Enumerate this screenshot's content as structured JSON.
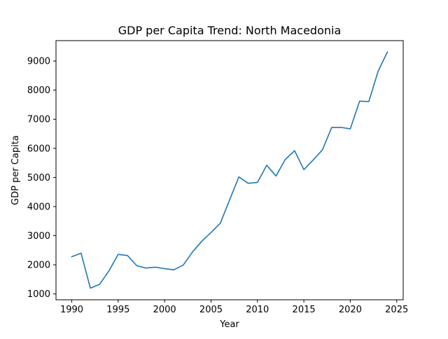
{
  "chart_data": {
    "type": "line",
    "title": "GDP per Capita Trend: North Macedonia",
    "xlabel": "Year",
    "ylabel": "GDP per Capita",
    "xlim": [
      1988.3,
      2025.7
    ],
    "ylim": [
      800,
      9700
    ],
    "xticks": [
      1990,
      1995,
      2000,
      2005,
      2010,
      2015,
      2020,
      2025
    ],
    "yticks": [
      1000,
      2000,
      3000,
      4000,
      5000,
      6000,
      7000,
      8000,
      9000
    ],
    "grid": false,
    "series": [
      {
        "name": "North Macedonia",
        "color": "#1f77b4",
        "x": [
          1990,
          1991,
          1992,
          1993,
          1994,
          1995,
          1996,
          1997,
          1998,
          1999,
          2000,
          2001,
          2002,
          2003,
          2004,
          2005,
          2006,
          2007,
          2008,
          2009,
          2010,
          2011,
          2012,
          2013,
          2014,
          2015,
          2016,
          2017,
          2018,
          2019,
          2020,
          2021,
          2022,
          2023,
          2024
        ],
        "y": [
          2280,
          2400,
          1200,
          1330,
          1790,
          2360,
          2320,
          1970,
          1890,
          1920,
          1870,
          1830,
          1990,
          2440,
          2810,
          3110,
          3430,
          4230,
          5020,
          4800,
          4830,
          5420,
          5050,
          5620,
          5920,
          5270,
          5600,
          5950,
          6720,
          6720,
          6670,
          7620,
          7610,
          8650,
          9310
        ]
      }
    ]
  }
}
